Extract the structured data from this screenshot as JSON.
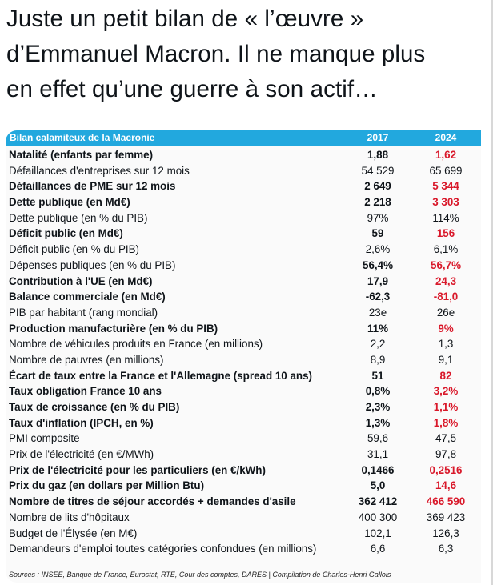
{
  "tweet": {
    "lines": [
      "Juste un petit bilan de « l’œuvre »",
      "d’Emmanuel Macron. Il ne manque plus",
      "en effet qu’une guerre à son actif…"
    ]
  },
  "table": {
    "title": "Bilan calamiteux de la Macronie",
    "col_2017": "2017",
    "col_2024": "2024",
    "rows": [
      {
        "label": "Natalité (enfants par femme)",
        "v2017": "1,88",
        "v2024": "1,62",
        "bold": true
      },
      {
        "label": "Défaillances d'entreprises sur 12 mois",
        "v2017": "54 529",
        "v2024": "65 699",
        "bold": false
      },
      {
        "label": "Défaillances de PME sur 12 mois",
        "v2017": "2 649",
        "v2024": "5 344",
        "bold": true
      },
      {
        "label": "Dette publique (en Md€)",
        "v2017": "2 218",
        "v2024": "3 303",
        "bold": true
      },
      {
        "label": "Dette publique (en % du PIB)",
        "v2017": "97%",
        "v2024": "114%",
        "bold": false
      },
      {
        "label": "Déficit public (en Md€)",
        "v2017": "59",
        "v2024": "156",
        "bold": true
      },
      {
        "label": "Déficit public (en % du PIB)",
        "v2017": "2,6%",
        "v2024": "6,1%",
        "bold": false
      },
      {
        "label": "Dépenses publiques (en % du PIB)",
        "v2017": "56,4%",
        "v2024": "56,7%",
        "bold": true,
        "label_normal": true
      },
      {
        "label": "Contribution à l'UE (en Md€)",
        "v2017": "17,9",
        "v2024": "24,3",
        "bold": true
      },
      {
        "label": "Balance commerciale (en Md€)",
        "v2017": "-62,3",
        "v2024": "-81,0",
        "bold": true
      },
      {
        "label": "PIB par habitant (rang mondial)",
        "v2017": "23e",
        "v2024": "26e",
        "bold": false
      },
      {
        "label": "Production manufacturière (en % du PIB)",
        "v2017": "11%",
        "v2024": "9%",
        "bold": true
      },
      {
        "label": "Nombre de véhicules produits en France (en millions)",
        "v2017": "2,2",
        "v2024": "1,3",
        "bold": false
      },
      {
        "label": "Nombre de pauvres (en millions)",
        "v2017": "8,9",
        "v2024": "9,1",
        "bold": false
      },
      {
        "label": "Écart de taux entre la France et l'Allemagne (spread 10 ans)",
        "v2017": "51",
        "v2024": "82",
        "bold": true
      },
      {
        "label": "Taux obligation France 10 ans",
        "v2017": "0,8%",
        "v2024": "3,2%",
        "bold": true
      },
      {
        "label": "Taux de croissance (en % du PIB)",
        "v2017": "2,3%",
        "v2024": "1,1%",
        "bold": true
      },
      {
        "label": "Taux d'inflation (IPCH, en %)",
        "v2017": "1,3%",
        "v2024": "1,8%",
        "bold": true
      },
      {
        "label": "PMI composite",
        "v2017": "59,6",
        "v2024": "47,5",
        "bold": false
      },
      {
        "label": "Prix de l'électricité (en €/MWh)",
        "v2017": "31,1",
        "v2024": "97,8",
        "bold": false
      },
      {
        "label": "Prix de l'électricité pour les particuliers (en €/kWh)",
        "v2017": "0,1466",
        "v2024": "0,2516",
        "bold": true
      },
      {
        "label": "Prix du gaz (en dollars per Million Btu)",
        "v2017": "5,0",
        "v2024": "14,6",
        "bold": true
      },
      {
        "label": "Nombre de titres de séjour accordés + demandes d'asile",
        "v2017": "362 412",
        "v2024": "466 590",
        "bold": true
      },
      {
        "label": "Nombre de lits d'hôpitaux",
        "v2017": "400 300",
        "v2024": "369 423",
        "bold": false
      },
      {
        "label": "Budget de l'Élysée (en M€)",
        "v2017": "102,1",
        "v2024": "126,3",
        "bold": false
      },
      {
        "label": "Demandeurs d'emploi toutes catégories confondues (en millions)",
        "v2017": "6,6",
        "v2024": "6,3",
        "bold": false
      }
    ],
    "sources": "Sources : INSEE, Banque de France, Eurostat, RTE, Cour des comptes, DARES | Compilation de Charles-Henri Gallois"
  },
  "colors": {
    "header_bg": "#22a8de",
    "highlight_red": "#d9182a"
  }
}
